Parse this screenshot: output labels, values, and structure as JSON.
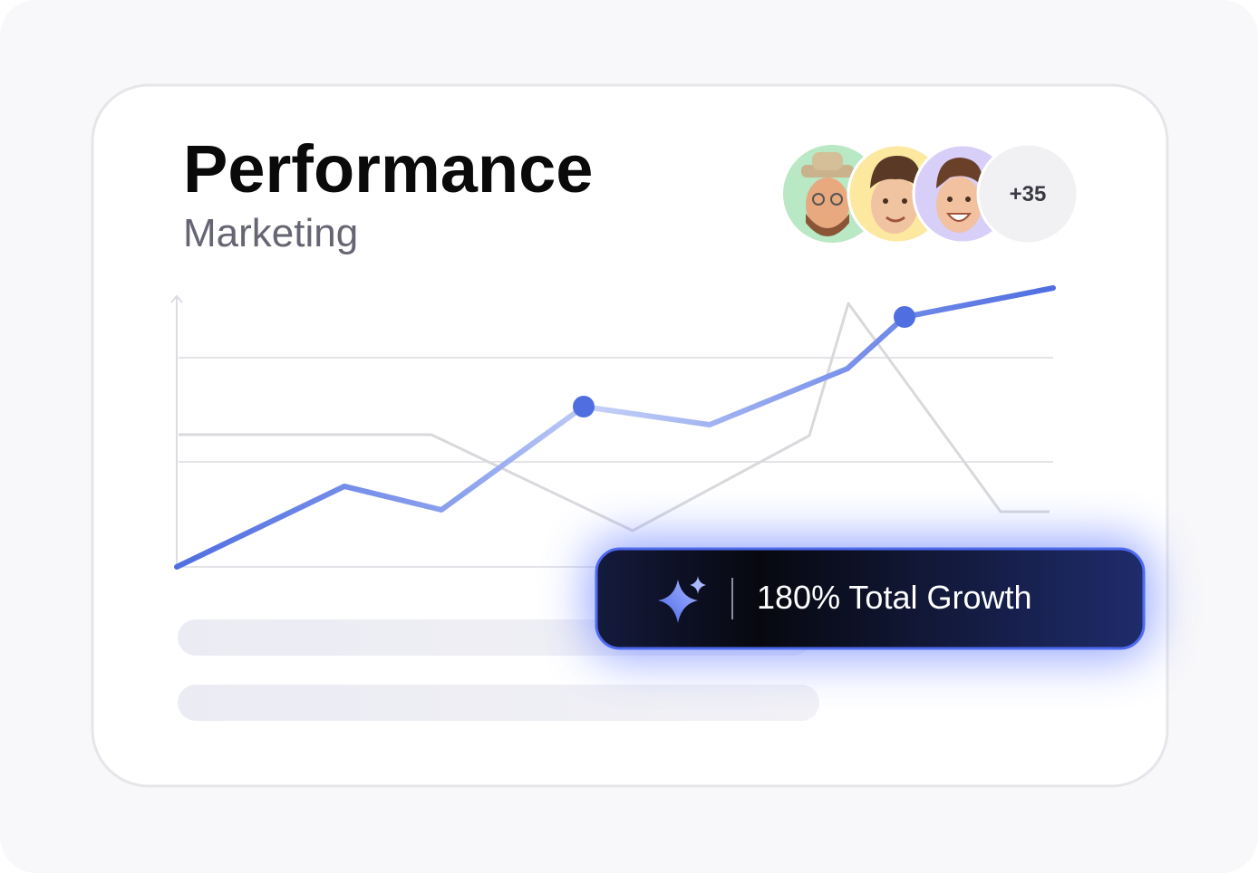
{
  "header": {
    "title": "Performance",
    "subtitle": "Marketing"
  },
  "avatars": {
    "more": "+35"
  },
  "badge": {
    "text": "180% Total Growth"
  }
}
